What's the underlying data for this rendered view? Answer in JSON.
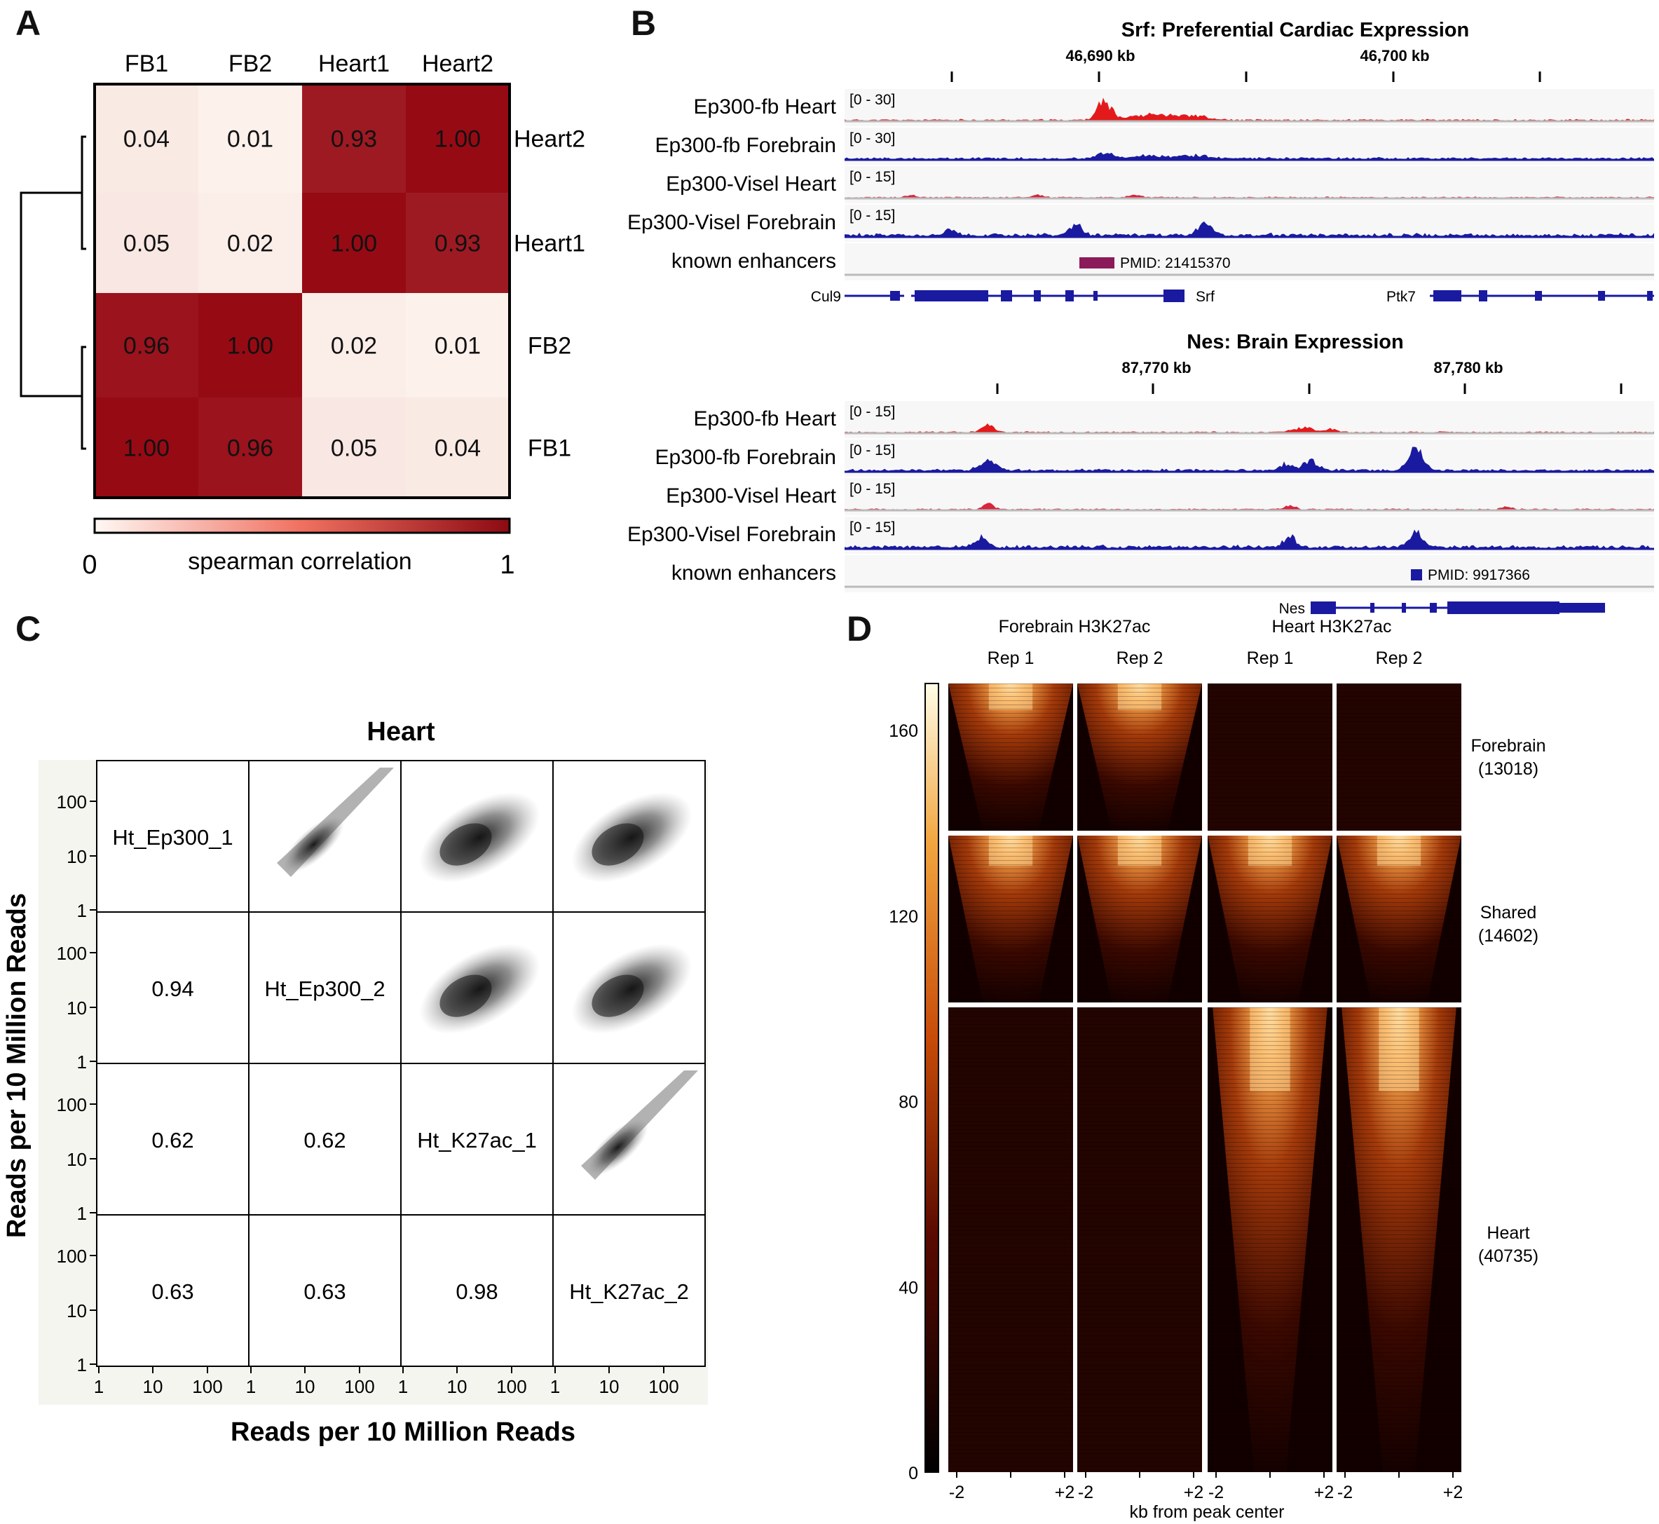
{
  "panel_letters": [
    "A",
    "B",
    "C",
    "D"
  ],
  "colors": {
    "heat_low": "#fdf0ea",
    "heat_high": "#a50f15",
    "heart_track": "#e31a1c",
    "brain_track": "#1a1aa0",
    "visel_heart": "#d7263d",
    "enhancer": "#8b1a5a",
    "gene": "#1a1aa0"
  },
  "panelA": {
    "col_labels": [
      "FB1",
      "FB2",
      "Heart1",
      "Heart2"
    ],
    "row_labels": [
      "Heart2",
      "Heart1",
      "FB2",
      "FB1"
    ],
    "matrix": [
      [
        "0.04",
        "0.01",
        "0.93",
        "1.00"
      ],
      [
        "0.05",
        "0.02",
        "1.00",
        "0.93"
      ],
      [
        "0.96",
        "1.00",
        "0.02",
        "0.01"
      ],
      [
        "1.00",
        "0.96",
        "0.05",
        "0.04"
      ]
    ],
    "colorbar_min": "0",
    "colorbar_max": "1",
    "colorbar_label": "spearman correlation"
  },
  "panelB": {
    "top": {
      "title": "Srf: Preferential Cardiac Expression",
      "coords": [
        "46,690 kb",
        "46,700 kb"
      ],
      "tracks": [
        {
          "label": "Ep300-fb Heart",
          "range": "[0 - 30]"
        },
        {
          "label": "Ep300-fb Forebrain",
          "range": "[0 - 30]"
        },
        {
          "label": "Ep300-Visel Heart",
          "range": "[0 - 15]"
        },
        {
          "label": "Ep300-Visel Forebrain",
          "range": "[0 - 15]"
        },
        {
          "label": "known enhancers",
          "range": ""
        }
      ],
      "enhancer_label": "PMID: 21415370",
      "genes": [
        "Cul9",
        "Srf",
        "Ptk7"
      ]
    },
    "bottom": {
      "title": "Nes: Brain Expression",
      "coords": [
        "87,770 kb",
        "87,780 kb"
      ],
      "tracks": [
        {
          "label": "Ep300-fb Heart",
          "range": "[0 - 15]"
        },
        {
          "label": "Ep300-fb Forebrain",
          "range": "[0 - 15]"
        },
        {
          "label": "Ep300-Visel Heart",
          "range": "[0 - 15]"
        },
        {
          "label": "Ep300-Visel Forebrain",
          "range": "[0 - 15]"
        },
        {
          "label": "known enhancers",
          "range": ""
        }
      ],
      "enhancer_label": "PMID: 9917366",
      "genes": [
        "Nes"
      ]
    }
  },
  "panelC": {
    "title": "Heart",
    "diag_labels": [
      "Ht_Ep300_1",
      "Ht_Ep300_2",
      "Ht_K27ac_1",
      "Ht_K27ac_2"
    ],
    "lower_values": {
      "r2c1": "0.94",
      "r3c1": "0.62",
      "r3c2": "0.62",
      "r4c1": "0.63",
      "r4c2": "0.63",
      "r4c3": "0.98"
    },
    "tick_labels": [
      "1",
      "10",
      "100"
    ],
    "xlabel": "Reads per 10 Million Reads",
    "ylabel": "Reads per 10 Million Reads"
  },
  "panelD": {
    "group_headers": [
      "Forebrain H3K27ac",
      "Heart H3K27ac"
    ],
    "col_headers": [
      "Rep 1",
      "Rep 2",
      "Rep 1",
      "Rep 2"
    ],
    "row_groups": [
      {
        "name": "Forebrain",
        "count": "(13018)"
      },
      {
        "name": "Shared",
        "count": "(14602)"
      },
      {
        "name": "Heart",
        "count": "(40735)"
      }
    ],
    "colorbar_ticks": [
      "160",
      "120",
      "80",
      "40",
      "0"
    ],
    "x_ticks": [
      "-2",
      "+2"
    ],
    "xlabel": "kb from peak center"
  }
}
